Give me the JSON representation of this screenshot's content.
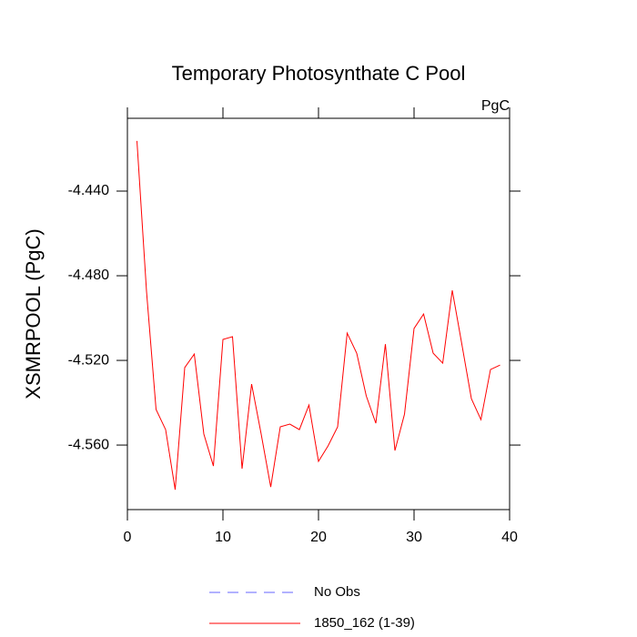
{
  "chart_data": {
    "type": "line",
    "title": "Temporary Photosynthate C Pool",
    "units": "PgC",
    "y_label": "XSMRPOOL  (PgC)",
    "x": [
      1,
      2,
      3,
      4,
      5,
      6,
      7,
      8,
      9,
      10,
      11,
      12,
      13,
      14,
      15,
      16,
      17,
      18,
      19,
      20,
      21,
      22,
      23,
      24,
      25,
      26,
      27,
      28,
      29,
      30,
      31,
      32,
      33,
      34,
      35,
      36,
      37,
      38,
      39
    ],
    "series": [
      {
        "name": "No Obs",
        "color": "#6666ff",
        "dash": true,
        "values": [
          null,
          null,
          null,
          null,
          null,
          null,
          null,
          null,
          null,
          null,
          null,
          null,
          null,
          null,
          null,
          null,
          null,
          null,
          null,
          null,
          null,
          null,
          null,
          null,
          null,
          null,
          null,
          null,
          null,
          null,
          null,
          null,
          null,
          null,
          null,
          null,
          null,
          null,
          null
        ]
      },
      {
        "name": "1850_162 (1-39)",
        "color": "#ff0000",
        "dash": false,
        "values": [
          -4.4163,
          -4.4873,
          -4.5432,
          -4.5527,
          -4.5811,
          -4.5234,
          -4.517,
          -4.5548,
          -4.5699,
          -4.5101,
          -4.5088,
          -4.5712,
          -4.5312,
          -4.5548,
          -4.5798,
          -4.5514,
          -4.5501,
          -4.5527,
          -4.5411,
          -4.5677,
          -4.5604,
          -4.5514,
          -4.5071,
          -4.5166,
          -4.5368,
          -4.5497,
          -4.5123,
          -4.5626,
          -4.5454,
          -4.5049,
          -4.4981,
          -4.5166,
          -4.5213,
          -4.4869,
          -4.5123,
          -4.5381,
          -4.548,
          -4.5243,
          -4.5222
        ]
      }
    ],
    "xlim": [
      0,
      40
    ],
    "xticks": [
      0,
      10,
      20,
      30,
      40
    ],
    "ylim": [
      -4.5905,
      -4.4056
    ],
    "yticks": [
      {
        "value": -4.56,
        "label": "-4.560"
      },
      {
        "value": -4.52,
        "label": "-4.520"
      },
      {
        "value": -4.48,
        "label": "-4.480"
      },
      {
        "value": -4.44,
        "label": "-4.440"
      }
    ],
    "grid": false
  }
}
